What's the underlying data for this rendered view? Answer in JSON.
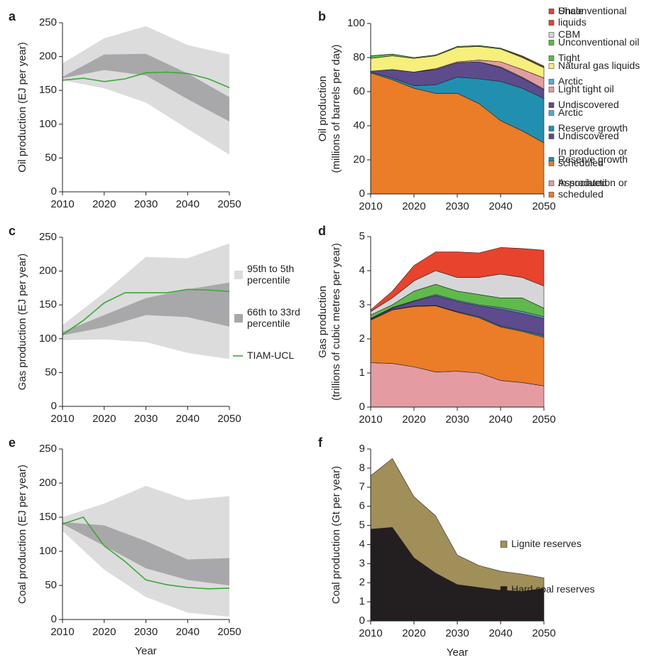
{
  "chart_data": [
    {
      "type": "band",
      "label": "a",
      "ylabel": "Oil production (EJ per year)",
      "xlim": [
        2010,
        2050
      ],
      "xticks": [
        2010,
        2020,
        2030,
        2040,
        2050
      ],
      "ylim": [
        0,
        250
      ],
      "yticks": [
        0,
        50,
        100,
        150,
        200,
        250
      ],
      "bands": [
        {
          "color": "#dcdcdd",
          "x": [
            2010,
            2020,
            2030,
            2040,
            2050
          ],
          "upper": [
            190,
            227,
            245,
            217,
            203
          ],
          "lower": [
            165,
            153,
            132,
            93,
            55
          ]
        },
        {
          "color": "#a8a8aa",
          "x": [
            2010,
            2020,
            2030,
            2040,
            2050
          ],
          "upper": [
            170,
            203,
            204,
            175,
            140
          ],
          "lower": [
            168,
            180,
            172,
            137,
            104
          ]
        }
      ],
      "series": [
        {
          "color": "#3aaa35",
          "x": [
            2010,
            2015,
            2020,
            2025,
            2030,
            2035,
            2040,
            2045,
            2050
          ],
          "values": [
            165,
            168,
            163,
            167,
            176,
            177,
            175,
            167,
            154
          ]
        }
      ]
    },
    {
      "type": "area",
      "label": "b",
      "ylabel": [
        "Oil production",
        "(millions of barrels per day)"
      ],
      "xlim": [
        2010,
        2050
      ],
      "xticks": [
        2010,
        2020,
        2030,
        2040,
        2050
      ],
      "ylim": [
        0,
        100
      ],
      "yticks": [
        0,
        20,
        40,
        60,
        80,
        100
      ],
      "legend": "right",
      "x": [
        2010,
        2015,
        2020,
        2025,
        2030,
        2035,
        2040,
        2045,
        2050
      ],
      "series": [
        {
          "name": "In production or scheduled",
          "color": "#eb7c28",
          "values": [
            71,
            67,
            62,
            59,
            59,
            53,
            43,
            37,
            30
          ]
        },
        {
          "name": "Reserve growth",
          "color": "#2190b0",
          "values": [
            0.5,
            1,
            1.5,
            5,
            9.5,
            14.5,
            23,
            25,
            26
          ]
        },
        {
          "name": "Undiscovered",
          "color": "#5d4b8c",
          "values": [
            0.5,
            5,
            8,
            9,
            8.5,
            10,
            8,
            6,
            5
          ]
        },
        {
          "name": "Arctic",
          "color": "#5aaad8",
          "values": [
            0,
            0,
            0,
            0,
            0,
            0,
            0.5,
            0.5,
            0.5
          ]
        },
        {
          "name": "Light tight oil",
          "color": "#e49ca2",
          "values": [
            0,
            0,
            0,
            0.5,
            0.5,
            1,
            3,
            4.5,
            6.5
          ]
        },
        {
          "name": "Natural gas liquids",
          "color": "#f6ef7c",
          "values": [
            7.5,
            8,
            8,
            7.5,
            8.5,
            8,
            7.5,
            7,
            6
          ]
        },
        {
          "name": "Unconventional oil",
          "color": "#5fb94b",
          "values": [
            1.5,
            1,
            0.5,
            0.5,
            0.5,
            0.5,
            0.5,
            0.5,
            0.5
          ]
        },
        {
          "name": "Unconventional liquids",
          "color": "#e8432c",
          "values": [
            0,
            0,
            0,
            0,
            0,
            0,
            0,
            0.5,
            0.5
          ]
        }
      ]
    },
    {
      "type": "band",
      "label": "c",
      "ylabel": "Gas production (EJ per year)",
      "xlim": [
        2010,
        2050
      ],
      "xticks": [
        2010,
        2020,
        2030,
        2040,
        2050
      ],
      "ylim": [
        0,
        250
      ],
      "yticks": [
        0,
        50,
        100,
        150,
        200,
        250
      ],
      "legend": "right outside",
      "bands": [
        {
          "name": "95th to 5th percentile",
          "color": "#dcdcdd",
          "x": [
            2010,
            2020,
            2030,
            2040,
            2050
          ],
          "upper": [
            120,
            168,
            221,
            219,
            241
          ],
          "lower": [
            98,
            99,
            95,
            79,
            70
          ]
        },
        {
          "name": "66th to 33rd percentile",
          "color": "#a8a8aa",
          "x": [
            2010,
            2020,
            2030,
            2040,
            2050
          ],
          "upper": [
            110,
            135,
            160,
            173,
            183
          ],
          "lower": [
            105,
            117,
            135,
            132,
            118
          ]
        }
      ],
      "series": [
        {
          "name": "TIAM-UCL",
          "color": "#3aaa35",
          "x": [
            2010,
            2015,
            2020,
            2025,
            2030,
            2035,
            2040,
            2045,
            2050
          ],
          "values": [
            106,
            127,
            153,
            168,
            168,
            168,
            173,
            172,
            170
          ]
        }
      ]
    },
    {
      "type": "area",
      "label": "d",
      "ylabel": [
        "Gas production",
        "(trillions of cubic metres per year)"
      ],
      "xlim": [
        2010,
        2050
      ],
      "xticks": [
        2010,
        2020,
        2030,
        2040,
        2050
      ],
      "ylim": [
        0,
        5
      ],
      "yticks": [
        0,
        1,
        2,
        3,
        4,
        5
      ],
      "legend": "right",
      "x": [
        2010,
        2015,
        2020,
        2025,
        2030,
        2035,
        2040,
        2045,
        2050
      ],
      "series": [
        {
          "name": "Associated",
          "color": "#e49ca2",
          "values": [
            1.3,
            1.28,
            1.18,
            1.03,
            1.05,
            1.0,
            0.78,
            0.72,
            0.62
          ]
        },
        {
          "name": "In production or scheduled",
          "color": "#eb7c28",
          "values": [
            1.25,
            1.57,
            1.77,
            1.94,
            1.73,
            1.62,
            1.57,
            1.5,
            1.43
          ]
        },
        {
          "name": "Reserve growth",
          "color": "#2190b0",
          "values": [
            0.01,
            0.01,
            0.01,
            0.01,
            0.02,
            0.03,
            0.03,
            0.03,
            0.05
          ]
        },
        {
          "name": "Undiscovered",
          "color": "#5d4b8c",
          "values": [
            0.02,
            0.04,
            0.14,
            0.29,
            0.3,
            0.32,
            0.5,
            0.5,
            0.5
          ]
        },
        {
          "name": "Arctic",
          "color": "#5aaad8",
          "values": [
            0.02,
            0.02,
            0.02,
            0.03,
            0.03,
            0.03,
            0.04,
            0.05,
            0.05
          ]
        },
        {
          "name": "Tight",
          "color": "#5fb94b",
          "values": [
            0.1,
            0.08,
            0.28,
            0.3,
            0.27,
            0.3,
            0.28,
            0.4,
            0.25
          ]
        },
        {
          "name": "CBM",
          "color": "#d6d6d8",
          "values": [
            0.1,
            0.2,
            0.3,
            0.4,
            0.4,
            0.5,
            0.7,
            0.6,
            0.65
          ]
        },
        {
          "name": "Shale",
          "color": "#e8432c",
          "values": [
            0.05,
            0.2,
            0.45,
            0.55,
            0.75,
            0.72,
            0.78,
            0.85,
            1.05
          ]
        }
      ]
    },
    {
      "type": "band",
      "label": "e",
      "ylabel": "Coal production (EJ per year)",
      "xlabel": "Year",
      "xlim": [
        2010,
        2050
      ],
      "xticks": [
        2010,
        2020,
        2030,
        2040,
        2050
      ],
      "ylim": [
        0,
        250
      ],
      "yticks": [
        0,
        50,
        100,
        150,
        200,
        250
      ],
      "bands": [
        {
          "color": "#dcdcdd",
          "x": [
            2010,
            2020,
            2030,
            2040,
            2050
          ],
          "upper": [
            150,
            170,
            196,
            175,
            181
          ],
          "lower": [
            130,
            73,
            33,
            10,
            4
          ]
        },
        {
          "color": "#a8a8aa",
          "x": [
            2010,
            2020,
            2030,
            2040,
            2050
          ],
          "upper": [
            143,
            138,
            115,
            88,
            90
          ],
          "lower": [
            140,
            108,
            75,
            58,
            50
          ]
        }
      ],
      "series": [
        {
          "color": "#3aaa35",
          "x": [
            2010,
            2015,
            2020,
            2025,
            2030,
            2035,
            2040,
            2045,
            2050
          ],
          "values": [
            140,
            150,
            108,
            85,
            58,
            51,
            47,
            45,
            46
          ]
        }
      ]
    },
    {
      "type": "area",
      "label": "f",
      "ylabel": [
        "Coal production (Gt per year)"
      ],
      "xlabel": "Year",
      "xlim": [
        2010,
        2050
      ],
      "xticks": [
        2010,
        2020,
        2030,
        2040,
        2050
      ],
      "ylim": [
        0,
        9
      ],
      "yticks": [
        0,
        1,
        2,
        3,
        4,
        5,
        6,
        7,
        8,
        9
      ],
      "legend": "center right",
      "x": [
        2010,
        2015,
        2020,
        2025,
        2030,
        2035,
        2040,
        2045,
        2050
      ],
      "series": [
        {
          "name": "Hard coal reserves",
          "color": "#231f20",
          "values": [
            4.8,
            4.9,
            3.3,
            2.5,
            1.9,
            1.75,
            1.6,
            1.55,
            1.7
          ]
        },
        {
          "name": "Lignite reserves",
          "color": "#a08f59",
          "values": [
            2.8,
            3.6,
            3.2,
            3.0,
            1.55,
            1.15,
            1.0,
            0.9,
            0.55
          ]
        }
      ]
    }
  ]
}
